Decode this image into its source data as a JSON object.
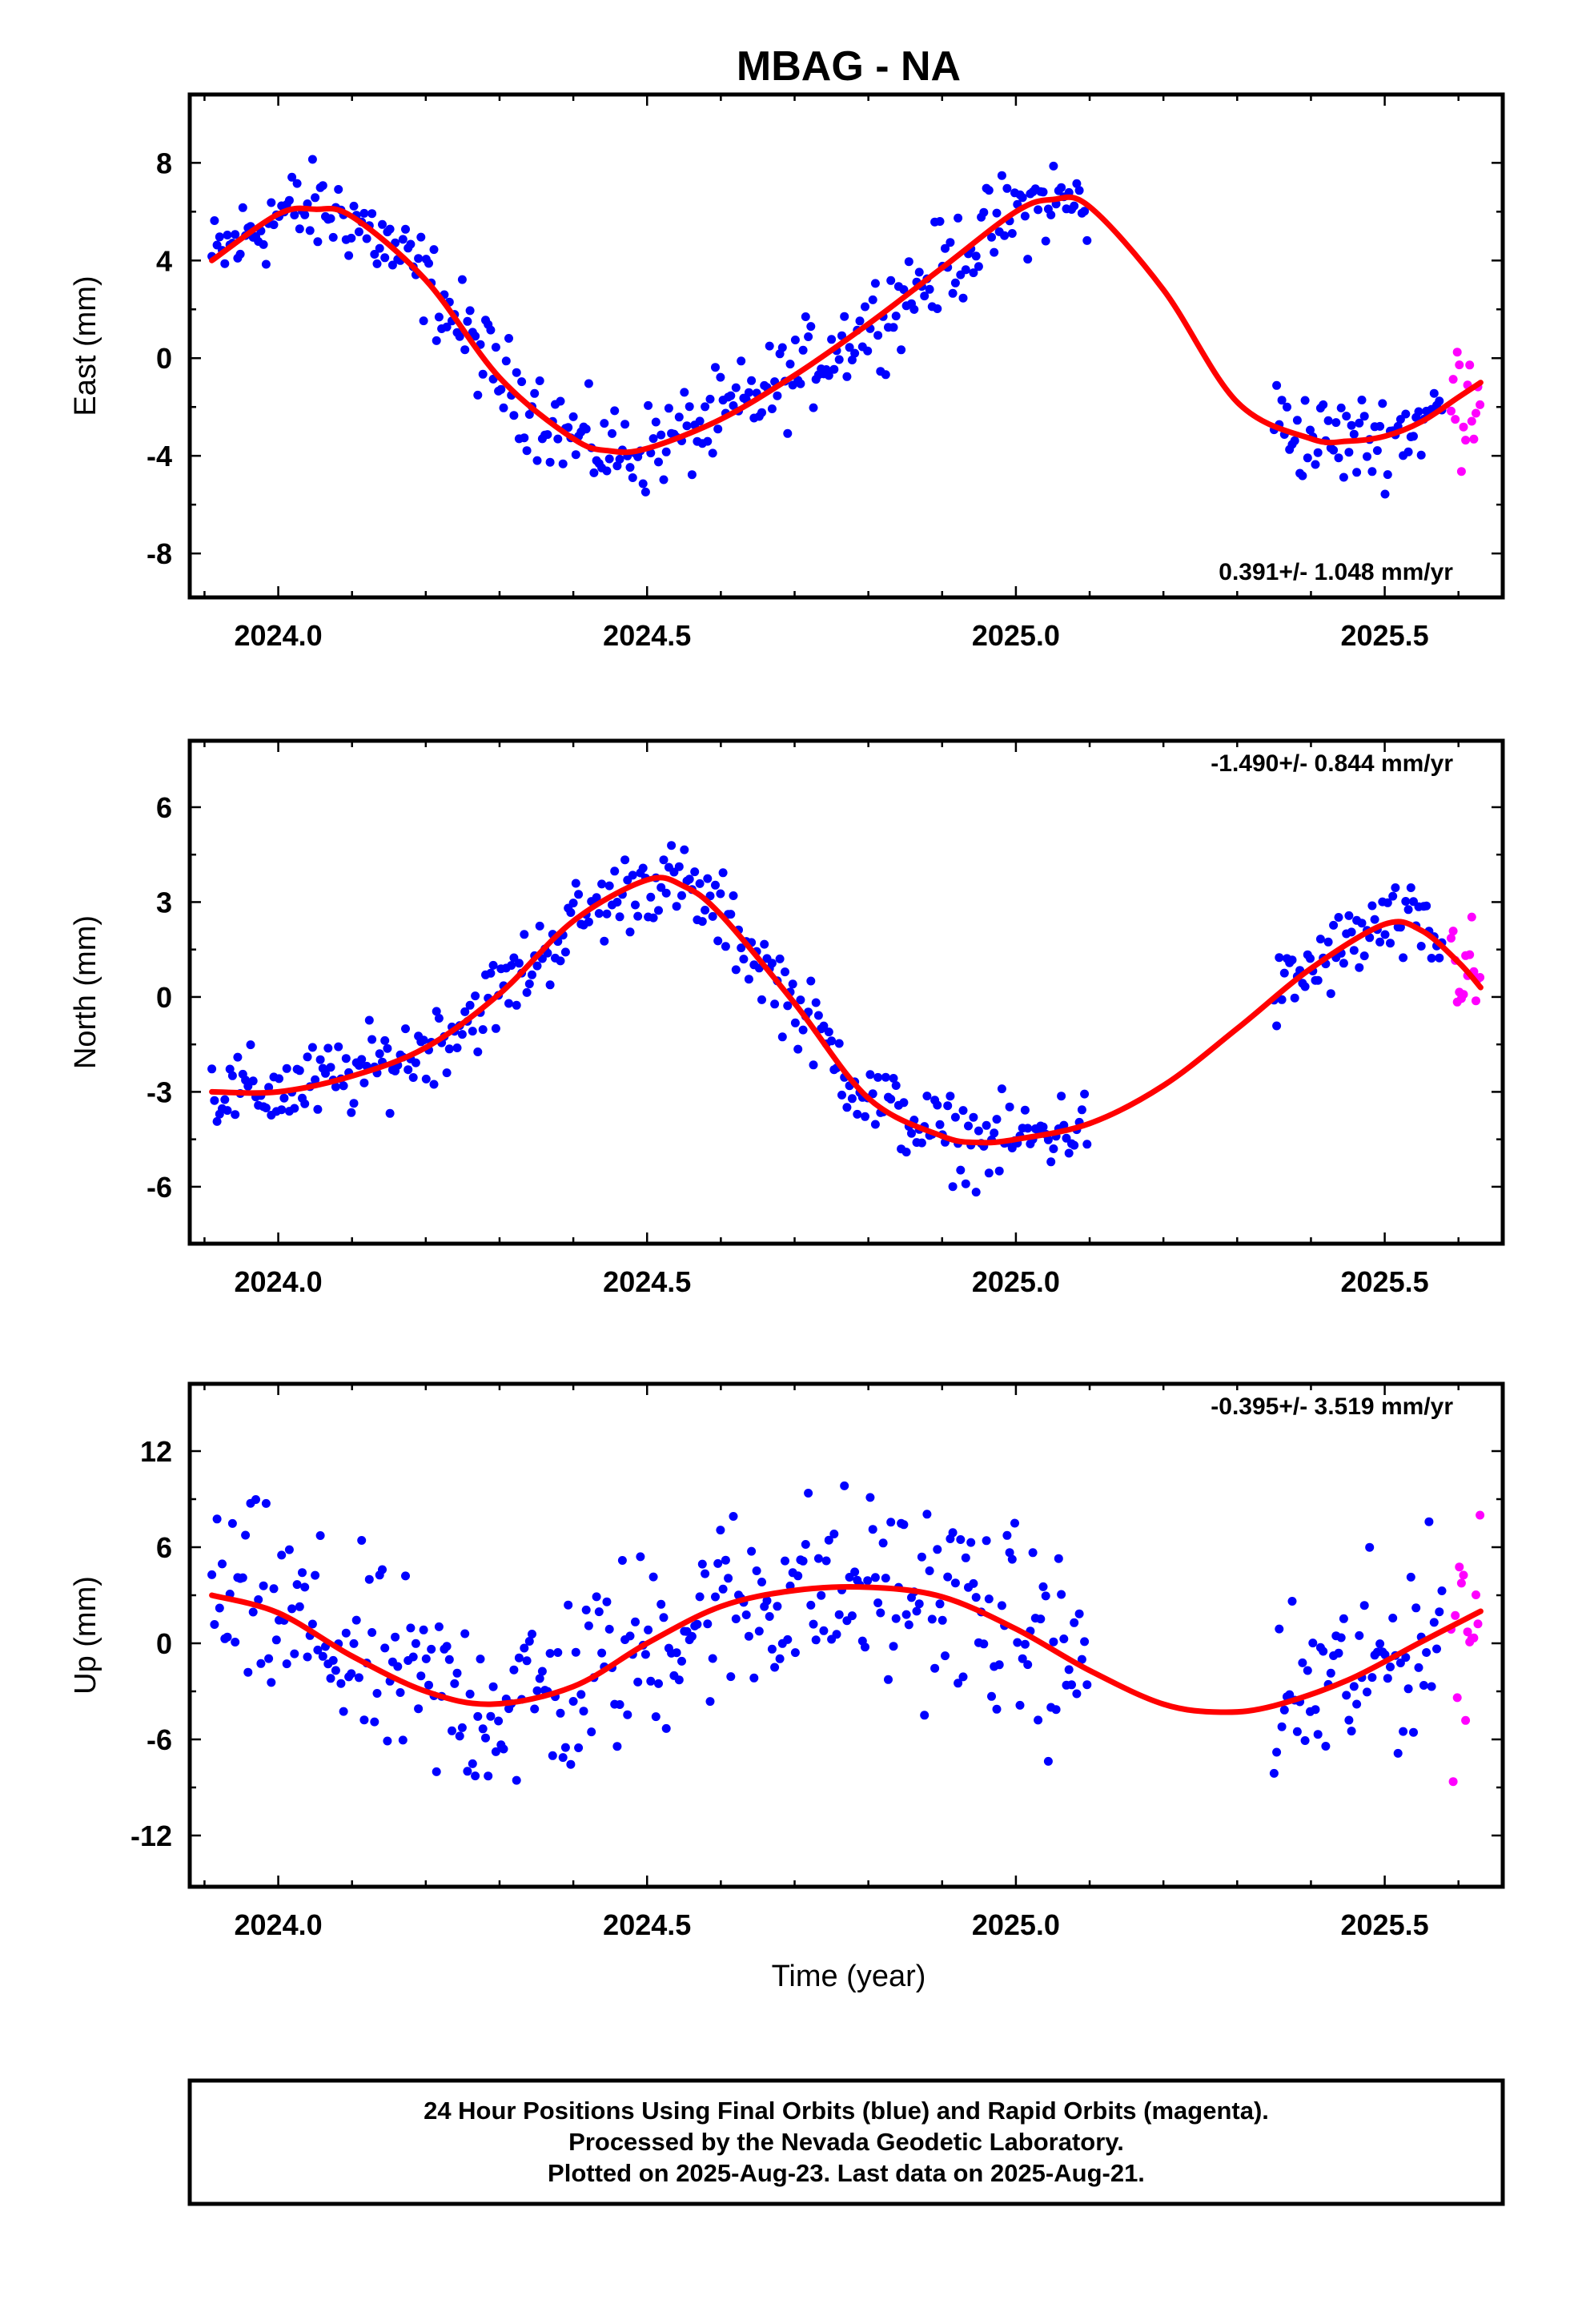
{
  "title": "MBAG - NA",
  "colors": {
    "final": "#0000ff",
    "rapid": "#ff00ff",
    "fit": "#ff0000",
    "frame": "#000000"
  },
  "chart_data": [
    {
      "type": "scatter",
      "id": "east",
      "ylabel": "East (mm)",
      "xlabel": "",
      "xlim": [
        2023.88,
        2025.66
      ],
      "ylim": [
        -9.8,
        10.8
      ],
      "xticks": [
        "2024.0",
        "2024.5",
        "2025.0",
        "2025.5"
      ],
      "yticks": [
        "8",
        "4",
        "0",
        "-4",
        "-8"
      ],
      "rate_text": "0.391+/- 1.048 mm/yr",
      "rate_position": "bottom-right",
      "final_segments": [
        [
          2023.91,
          2025.1
        ],
        [
          2025.35,
          2025.58
        ]
      ],
      "rapid_range": [
        2025.59,
        2025.63
      ],
      "fit_curve": {
        "x": [
          2023.91,
          2024.0,
          2024.05,
          2024.1,
          2024.2,
          2024.3,
          2024.4,
          2024.45,
          2024.5,
          2024.6,
          2024.7,
          2024.8,
          2024.9,
          2025.0,
          2025.05,
          2025.1,
          2025.2,
          2025.3,
          2025.4,
          2025.45,
          2025.5,
          2025.55,
          2025.6,
          2025.63
        ],
        "y": [
          4.0,
          5.9,
          6.1,
          5.8,
          3.2,
          -0.8,
          -3.3,
          -3.8,
          -3.7,
          -2.5,
          -0.7,
          1.4,
          3.7,
          6.0,
          6.5,
          6.2,
          2.8,
          -1.8,
          -3.3,
          -3.4,
          -3.2,
          -2.6,
          -1.6,
          -1.0
        ]
      },
      "scatter_spread": 1.6
    },
    {
      "type": "scatter",
      "id": "north",
      "ylabel": "North (mm)",
      "xlabel": "",
      "xlim": [
        2023.88,
        2025.66
      ],
      "ylim": [
        -7.8,
        8.1
      ],
      "xticks": [
        "2024.0",
        "2024.5",
        "2025.0",
        "2025.5"
      ],
      "yticks": [
        "6",
        "3",
        "0",
        "-3",
        "-6"
      ],
      "rate_text": "-1.490+/- 0.844 mm/yr",
      "rate_position": "top-right",
      "final_segments": [
        [
          2023.91,
          2025.1
        ],
        [
          2025.35,
          2025.58
        ]
      ],
      "rapid_range": [
        2025.59,
        2025.63
      ],
      "fit_curve": {
        "x": [
          2023.91,
          2024.0,
          2024.1,
          2024.2,
          2024.3,
          2024.4,
          2024.5,
          2024.55,
          2024.6,
          2024.7,
          2024.8,
          2024.9,
          2024.95,
          2025.0,
          2025.1,
          2025.2,
          2025.3,
          2025.4,
          2025.5,
          2025.55,
          2025.6,
          2025.63
        ],
        "y": [
          -3.0,
          -3.0,
          -2.5,
          -1.6,
          0.1,
          2.4,
          3.7,
          3.5,
          2.6,
          -0.2,
          -3.2,
          -4.4,
          -4.6,
          -4.5,
          -4.0,
          -2.8,
          -1.0,
          0.9,
          2.3,
          2.1,
          1.1,
          0.3
        ]
      },
      "scatter_spread": 1.1
    },
    {
      "type": "scatter",
      "id": "up",
      "ylabel": "Up (mm)",
      "xlabel": "Time (year)",
      "xlim": [
        2023.88,
        2025.66
      ],
      "ylim": [
        -15.2,
        16.2
      ],
      "xticks": [
        "2024.0",
        "2024.5",
        "2025.0",
        "2025.5"
      ],
      "yticks": [
        "12",
        "6",
        "0",
        "-6",
        "-12"
      ],
      "rate_text": "-0.395+/- 3.519 mm/yr",
      "rate_position": "top-right",
      "final_segments": [
        [
          2023.91,
          2025.1
        ],
        [
          2025.35,
          2025.58
        ]
      ],
      "rapid_range": [
        2025.59,
        2025.63
      ],
      "fit_curve": {
        "x": [
          2023.91,
          2024.0,
          2024.1,
          2024.2,
          2024.29,
          2024.4,
          2024.5,
          2024.6,
          2024.7,
          2024.8,
          2024.9,
          2025.0,
          2025.1,
          2025.2,
          2025.28,
          2025.35,
          2025.45,
          2025.55,
          2025.63
        ],
        "y": [
          3.0,
          1.9,
          -0.8,
          -3.0,
          -3.8,
          -2.7,
          0.0,
          2.3,
          3.3,
          3.5,
          2.9,
          0.9,
          -1.7,
          -3.8,
          -4.3,
          -3.9,
          -2.3,
          0.1,
          2.0
        ]
      },
      "scatter_spread": 5.2
    }
  ],
  "footer": {
    "line1": "24 Hour Positions Using Final Orbits (blue) and Rapid Orbits (magenta).",
    "line2": "Processed by the Nevada Geodetic Laboratory.",
    "line3": "Plotted on 2025-Aug-23. Last data on 2025-Aug-21."
  }
}
